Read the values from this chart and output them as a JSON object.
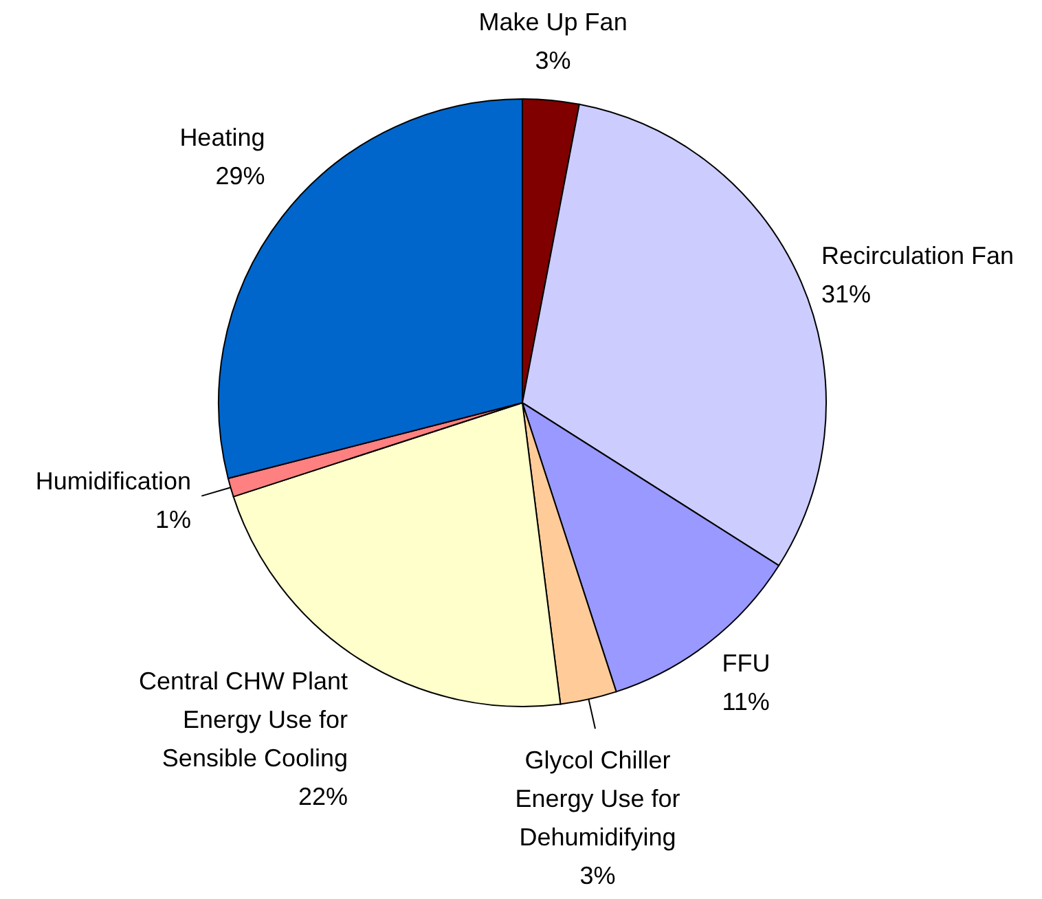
{
  "chart_data": {
    "type": "pie",
    "categories": [
      "Make Up Fan",
      "Recirculation Fan",
      "FFU",
      "Glycol Chiller Energy Use for Dehumidifying",
      "Central CHW Plant Energy Use for Sensible Cooling",
      "Humidification",
      "Heating"
    ],
    "values": [
      3,
      31,
      11,
      3,
      22,
      1,
      29
    ],
    "colors": [
      "#800000",
      "#ccccff",
      "#9999ff",
      "#ffcc99",
      "#ffffcc",
      "#ff8080",
      "#0066cc"
    ],
    "value_labels": [
      "3%",
      "31%",
      "11%",
      "3%",
      "22%",
      "1%",
      "29%"
    ]
  }
}
